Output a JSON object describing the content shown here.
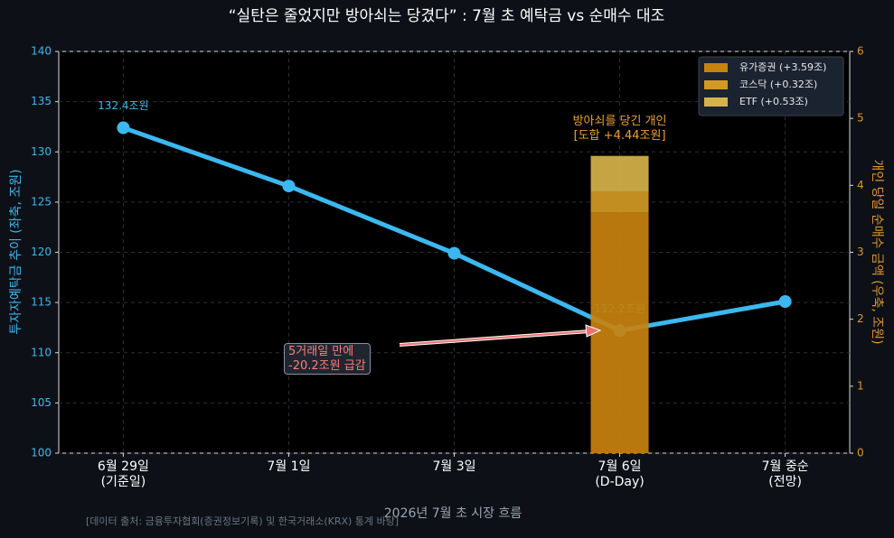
{
  "chart_data": {
    "type": "combo",
    "title": "“실탄은 줄었지만 방아쇠는 당겼다” : 7월 초 예탁금 vs 순매수 대조",
    "categories": [
      "6월 29일\n(기준일)",
      "7월 1일",
      "7월 3일",
      "7월 6일\n(D-Day)",
      "7월 중순\n(전망)"
    ],
    "xlabel": "2026년 7월 초 시장 흐름",
    "ylabel": "투자자예탁금 추이 (좌축, 조원)",
    "y2label": "개인 당일 순매수 금액 (우축, 조원)",
    "ylim": [
      100,
      140
    ],
    "yticks": [
      100,
      105,
      110,
      115,
      120,
      125,
      130,
      135,
      140
    ],
    "y2lim": [
      0,
      6
    ],
    "y2ticks": [
      0,
      1,
      2,
      3,
      4,
      5,
      6
    ],
    "grid": true,
    "legend": "upper right",
    "series": [
      {
        "type": "line",
        "color": "#3cb8f0",
        "values": [
          132.4,
          126.6,
          119.9,
          112.2,
          115.1
        ],
        "value_labels": [
          "132.4조원",
          null,
          null,
          "112.2조원",
          null
        ]
      },
      {
        "type": "bar",
        "axis": "y2",
        "name": "유가증권 (+3.59조)",
        "color": "#c8820f",
        "values": [
          null,
          null,
          null,
          3.59,
          null
        ]
      },
      {
        "type": "bar",
        "axis": "y2",
        "name": "코스닥 (+0.32조)",
        "color": "#d29a24",
        "values": [
          null,
          null,
          null,
          0.32,
          null
        ]
      },
      {
        "type": "bar",
        "axis": "y2",
        "name": "ETF (+0.53조)",
        "color": "#d6b24a",
        "values": [
          null,
          null,
          null,
          0.53,
          null
        ]
      }
    ],
    "annotations": [
      "5거래일 만에\n-20.2조원 급감",
      "방아쇠를 당긴 개인\n[도합 +4.44조원]"
    ],
    "source": "[데이터 출처: 금융투자협회(증권정보기록) 및 한국거래소(KRX) 통계 바탕]"
  }
}
